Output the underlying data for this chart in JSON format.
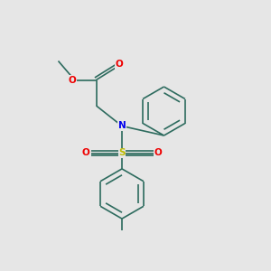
{
  "bg_color": "#e6e6e6",
  "bond_color": "#2d6b5e",
  "N_color": "#0000ee",
  "O_color": "#ee0000",
  "S_color": "#bbbb00",
  "line_width": 1.2,
  "figsize": [
    3.0,
    3.0
  ],
  "dpi": 100,
  "xlim": [
    0,
    10
  ],
  "ylim": [
    0,
    10
  ]
}
